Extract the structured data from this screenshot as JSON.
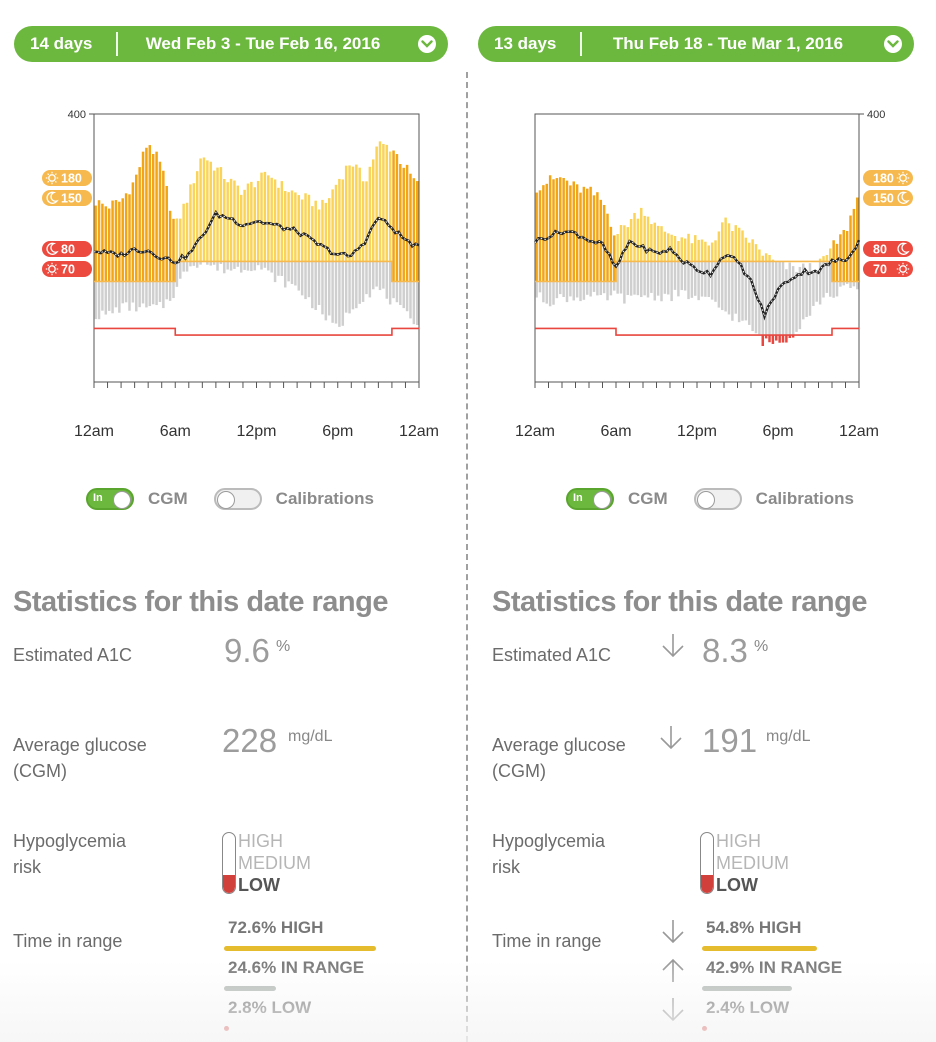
{
  "colors": {
    "green": "#6cb83e",
    "high_dark": "#f2a516",
    "high_light": "#fad45a",
    "inrange_gray": "#cfcfcf",
    "low_red": "#e8463f",
    "range_orange": "#f6b94f",
    "low_badge": "#ec4a3f"
  },
  "periods": [
    {
      "days_label": "14 days",
      "date_range": "Wed Feb 3 - Tue Feb 16, 2016",
      "toggle_cgm": "CGM",
      "toggle_cgm_state": "on",
      "toggle_cal": "Calibrations",
      "toggle_cal_state": "off",
      "stats_title": "Statistics for this date range",
      "a1c_label": "Estimated A1C",
      "a1c_value": "9.6",
      "a1c_unit": "%",
      "a1c_trend": "",
      "avg_label": "Average glucose (CGM)",
      "avg_value": "228",
      "avg_unit": "mg/dL",
      "avg_trend": "",
      "hypo_label": "Hypoglycemia risk",
      "hypo_levels": [
        "HIGH",
        "MEDIUM",
        "LOW"
      ],
      "hypo_active": "LOW",
      "tir_label": "Time in range",
      "tir": [
        {
          "text": "72.6% HIGH",
          "percent": 72.6,
          "color": "#e6bc2f",
          "trend": ""
        },
        {
          "text": "24.6% IN RANGE",
          "percent": 24.6,
          "color": "#b4bab6",
          "trend": ""
        },
        {
          "text": "2.8% LOW",
          "percent": 2.8,
          "color": "#d2403b",
          "trend": ""
        }
      ]
    },
    {
      "days_label": "13 days",
      "date_range": "Thu Feb 18 - Tue Mar 1, 2016",
      "toggle_cgm": "CGM",
      "toggle_cgm_state": "on",
      "toggle_cal": "Calibrations",
      "toggle_cal_state": "off",
      "stats_title": "Statistics for this date range",
      "a1c_label": "Estimated A1C",
      "a1c_value": "8.3",
      "a1c_unit": "%",
      "a1c_trend": "down",
      "avg_label": "Average glucose (CGM)",
      "avg_value": "191",
      "avg_unit": "mg/dL",
      "avg_trend": "down",
      "hypo_label": "Hypoglycemia risk",
      "hypo_levels": [
        "HIGH",
        "MEDIUM",
        "LOW"
      ],
      "hypo_active": "LOW",
      "tir_label": "Time in range",
      "tir": [
        {
          "text": "54.8% HIGH",
          "percent": 54.8,
          "color": "#e6bc2f",
          "trend": "down"
        },
        {
          "text": "42.9% IN RANGE",
          "percent": 42.9,
          "color": "#b4bab6",
          "trend": "up"
        },
        {
          "text": "2.4% LOW",
          "percent": 2.4,
          "color": "#d2403b",
          "trend": "down"
        }
      ]
    }
  ],
  "chart_data": [
    {
      "type": "bar",
      "title": "",
      "y_tick_label": "400",
      "ylim": [
        0,
        400
      ],
      "x_tick_labels": [
        "12am",
        "6am",
        "12pm",
        "6pm",
        "12am"
      ],
      "threshold_badges": [
        {
          "value": 180,
          "label": "180",
          "icon": "sun-icon",
          "kind": "high"
        },
        {
          "value": 150,
          "label": "150",
          "icon": "moon-icon",
          "kind": "high"
        },
        {
          "value": 80,
          "label": "80",
          "icon": "moon-icon",
          "kind": "low"
        },
        {
          "value": 70,
          "label": "70",
          "icon": "sun-icon",
          "kind": "low"
        }
      ],
      "night_hours": [
        [
          0,
          6
        ],
        [
          22,
          24
        ]
      ],
      "series": [
        {
          "name": "median",
          "hours": [
            0,
            1,
            2,
            3,
            4,
            5,
            6,
            7,
            8,
            9,
            10,
            11,
            12,
            13,
            14,
            15,
            16,
            17,
            18,
            19,
            20,
            21,
            22,
            23,
            24
          ],
          "values": [
            196,
            192,
            190,
            198,
            196,
            186,
            180,
            190,
            218,
            250,
            245,
            235,
            240,
            236,
            230,
            225,
            212,
            200,
            190,
            188,
            210,
            246,
            230,
            212,
            200
          ]
        },
        {
          "name": "high_extent",
          "hours": [
            0,
            1,
            2,
            3,
            4,
            5,
            6,
            7,
            8,
            9,
            10,
            11,
            12,
            13,
            14,
            15,
            16,
            17,
            18,
            19,
            20,
            21,
            22,
            23,
            24
          ],
          "values": [
            270,
            262,
            270,
            300,
            360,
            320,
            230,
            280,
            340,
            320,
            300,
            285,
            300,
            310,
            290,
            280,
            270,
            262,
            300,
            330,
            300,
            355,
            350,
            320,
            290
          ]
        },
        {
          "name": "low_extent",
          "hours": [
            0,
            1,
            2,
            3,
            4,
            5,
            6,
            7,
            8,
            9,
            10,
            11,
            12,
            13,
            14,
            15,
            16,
            17,
            18,
            19,
            20,
            21,
            22,
            23,
            24
          ],
          "values": [
            100,
            100,
            112,
            112,
            110,
            112,
            135,
            175,
            180,
            170,
            168,
            170,
            175,
            160,
            150,
            140,
            120,
            100,
            78,
            110,
            130,
            140,
            120,
            100,
            90
          ]
        }
      ]
    },
    {
      "type": "bar",
      "title": "",
      "y_tick_label": "400",
      "ylim": [
        0,
        400
      ],
      "x_tick_labels": [
        "12am",
        "6am",
        "12pm",
        "6pm",
        "12am"
      ],
      "threshold_badges": [
        {
          "value": 180,
          "label": "180",
          "icon": "sun-icon",
          "kind": "high"
        },
        {
          "value": 150,
          "label": "150",
          "icon": "moon-icon",
          "kind": "high"
        },
        {
          "value": 80,
          "label": "80",
          "icon": "moon-icon",
          "kind": "low"
        },
        {
          "value": 70,
          "label": "70",
          "icon": "sun-icon",
          "kind": "low"
        }
      ],
      "night_hours": [
        [
          0,
          6
        ],
        [
          22,
          24
        ]
      ],
      "series": [
        {
          "name": "median",
          "hours": [
            0,
            1,
            2,
            3,
            4,
            5,
            6,
            7,
            8,
            9,
            10,
            11,
            12,
            13,
            14,
            15,
            16,
            17,
            18,
            19,
            20,
            21,
            22,
            23,
            24
          ],
          "values": [
            210,
            218,
            225,
            222,
            212,
            205,
            170,
            210,
            200,
            192,
            198,
            180,
            168,
            162,
            190,
            180,
            150,
            100,
            138,
            156,
            165,
            166,
            180,
            182,
            210
          ]
        },
        {
          "name": "high_extent",
          "hours": [
            0,
            1,
            2,
            3,
            4,
            5,
            6,
            7,
            8,
            9,
            10,
            11,
            12,
            13,
            14,
            15,
            16,
            17,
            18,
            19,
            20,
            21,
            22,
            23,
            24
          ],
          "values": [
            290,
            300,
            305,
            290,
            285,
            270,
            220,
            240,
            260,
            230,
            222,
            215,
            210,
            205,
            240,
            225,
            210,
            190,
            175,
            170,
            170,
            172,
            200,
            225,
            280
          ]
        },
        {
          "name": "low_extent",
          "hours": [
            0,
            1,
            2,
            3,
            4,
            5,
            6,
            7,
            8,
            9,
            10,
            11,
            12,
            13,
            14,
            15,
            16,
            17,
            18,
            19,
            20,
            21,
            22,
            23,
            24
          ],
          "values": [
            130,
            120,
            126,
            126,
            128,
            124,
            130,
            122,
            130,
            128,
            128,
            132,
            124,
            120,
            106,
            95,
            80,
            58,
            60,
            70,
            96,
            120,
            130,
            140,
            140
          ]
        }
      ]
    }
  ]
}
